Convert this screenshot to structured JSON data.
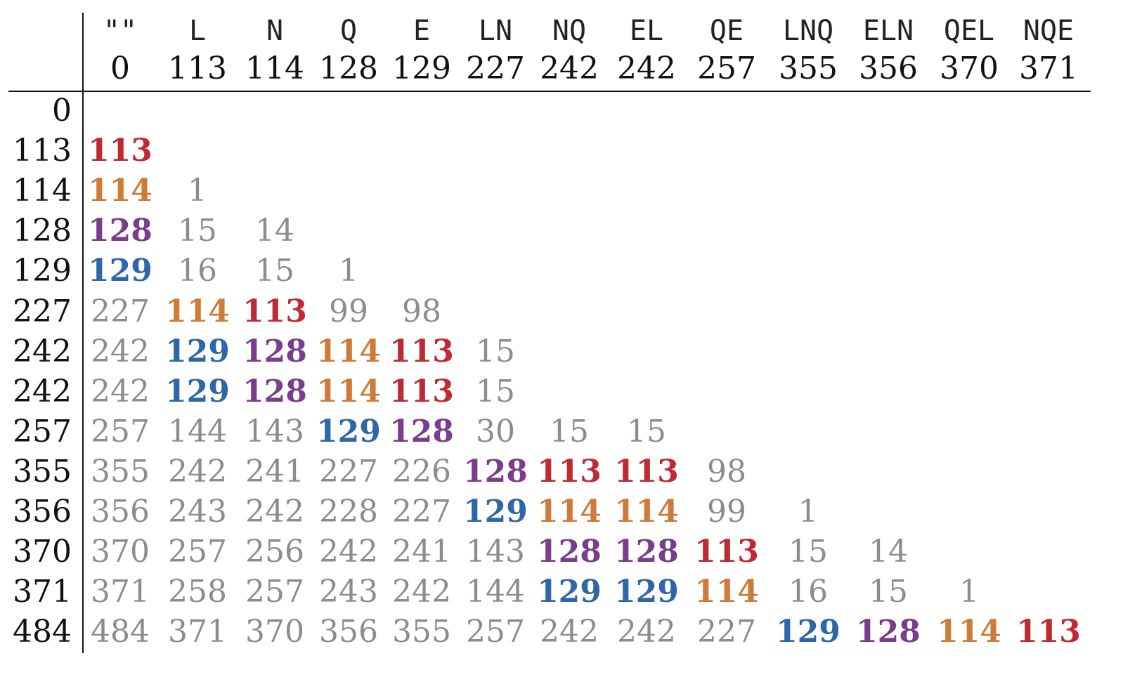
{
  "colors": {
    "red": "#bd2a33",
    "orange": "#d07a3a",
    "purple": "#7a3d8c",
    "blue": "#2d67a8",
    "gray": "#8c8c8c",
    "header": "#111111"
  },
  "header": {
    "codes": [
      "\"\"",
      "L",
      "N",
      "Q",
      "E",
      "LN",
      "NQ",
      "EL",
      "QE",
      "LNQ",
      "ELN",
      "QEL",
      "NQE"
    ],
    "values": [
      "0",
      "113",
      "114",
      "128",
      "129",
      "227",
      "242",
      "242",
      "257",
      "355",
      "356",
      "370",
      "371"
    ]
  },
  "rows": [
    {
      "label": "0",
      "cells": []
    },
    {
      "label": "113",
      "cells": [
        {
          "v": "113",
          "c": "red"
        }
      ]
    },
    {
      "label": "114",
      "cells": [
        {
          "v": "114",
          "c": "orange"
        },
        {
          "v": "1",
          "c": "gray"
        }
      ]
    },
    {
      "label": "128",
      "cells": [
        {
          "v": "128",
          "c": "purple"
        },
        {
          "v": "15",
          "c": "gray"
        },
        {
          "v": "14",
          "c": "gray"
        }
      ]
    },
    {
      "label": "129",
      "cells": [
        {
          "v": "129",
          "c": "blue"
        },
        {
          "v": "16",
          "c": "gray"
        },
        {
          "v": "15",
          "c": "gray"
        },
        {
          "v": "1",
          "c": "gray"
        }
      ]
    },
    {
      "label": "227",
      "cells": [
        {
          "v": "227",
          "c": "gray"
        },
        {
          "v": "114",
          "c": "orange"
        },
        {
          "v": "113",
          "c": "red"
        },
        {
          "v": "99",
          "c": "gray"
        },
        {
          "v": "98",
          "c": "gray"
        }
      ]
    },
    {
      "label": "242",
      "cells": [
        {
          "v": "242",
          "c": "gray"
        },
        {
          "v": "129",
          "c": "blue"
        },
        {
          "v": "128",
          "c": "purple"
        },
        {
          "v": "114",
          "c": "orange"
        },
        {
          "v": "113",
          "c": "red"
        },
        {
          "v": "15",
          "c": "gray"
        }
      ]
    },
    {
      "label": "242",
      "cells": [
        {
          "v": "242",
          "c": "gray"
        },
        {
          "v": "129",
          "c": "blue"
        },
        {
          "v": "128",
          "c": "purple"
        },
        {
          "v": "114",
          "c": "orange"
        },
        {
          "v": "113",
          "c": "red"
        },
        {
          "v": "15",
          "c": "gray"
        }
      ]
    },
    {
      "label": "257",
      "cells": [
        {
          "v": "257",
          "c": "gray"
        },
        {
          "v": "144",
          "c": "gray"
        },
        {
          "v": "143",
          "c": "gray"
        },
        {
          "v": "129",
          "c": "blue"
        },
        {
          "v": "128",
          "c": "purple"
        },
        {
          "v": "30",
          "c": "gray"
        },
        {
          "v": "15",
          "c": "gray"
        },
        {
          "v": "15",
          "c": "gray"
        }
      ]
    },
    {
      "label": "355",
      "cells": [
        {
          "v": "355",
          "c": "gray"
        },
        {
          "v": "242",
          "c": "gray"
        },
        {
          "v": "241",
          "c": "gray"
        },
        {
          "v": "227",
          "c": "gray"
        },
        {
          "v": "226",
          "c": "gray"
        },
        {
          "v": "128",
          "c": "purple"
        },
        {
          "v": "113",
          "c": "red"
        },
        {
          "v": "113",
          "c": "red"
        },
        {
          "v": "98",
          "c": "gray"
        }
      ]
    },
    {
      "label": "356",
      "cells": [
        {
          "v": "356",
          "c": "gray"
        },
        {
          "v": "243",
          "c": "gray"
        },
        {
          "v": "242",
          "c": "gray"
        },
        {
          "v": "228",
          "c": "gray"
        },
        {
          "v": "227",
          "c": "gray"
        },
        {
          "v": "129",
          "c": "blue"
        },
        {
          "v": "114",
          "c": "orange"
        },
        {
          "v": "114",
          "c": "orange"
        },
        {
          "v": "99",
          "c": "gray"
        },
        {
          "v": "1",
          "c": "gray"
        }
      ]
    },
    {
      "label": "370",
      "cells": [
        {
          "v": "370",
          "c": "gray"
        },
        {
          "v": "257",
          "c": "gray"
        },
        {
          "v": "256",
          "c": "gray"
        },
        {
          "v": "242",
          "c": "gray"
        },
        {
          "v": "241",
          "c": "gray"
        },
        {
          "v": "143",
          "c": "gray"
        },
        {
          "v": "128",
          "c": "purple"
        },
        {
          "v": "128",
          "c": "purple"
        },
        {
          "v": "113",
          "c": "red"
        },
        {
          "v": "15",
          "c": "gray"
        },
        {
          "v": "14",
          "c": "gray"
        }
      ]
    },
    {
      "label": "371",
      "cells": [
        {
          "v": "371",
          "c": "gray"
        },
        {
          "v": "258",
          "c": "gray"
        },
        {
          "v": "257",
          "c": "gray"
        },
        {
          "v": "243",
          "c": "gray"
        },
        {
          "v": "242",
          "c": "gray"
        },
        {
          "v": "144",
          "c": "gray"
        },
        {
          "v": "129",
          "c": "blue"
        },
        {
          "v": "129",
          "c": "blue"
        },
        {
          "v": "114",
          "c": "orange"
        },
        {
          "v": "16",
          "c": "gray"
        },
        {
          "v": "15",
          "c": "gray"
        },
        {
          "v": "1",
          "c": "gray"
        }
      ]
    },
    {
      "label": "484",
      "cells": [
        {
          "v": "484",
          "c": "gray"
        },
        {
          "v": "371",
          "c": "gray"
        },
        {
          "v": "370",
          "c": "gray"
        },
        {
          "v": "356",
          "c": "gray"
        },
        {
          "v": "355",
          "c": "gray"
        },
        {
          "v": "257",
          "c": "gray"
        },
        {
          "v": "242",
          "c": "gray"
        },
        {
          "v": "242",
          "c": "gray"
        },
        {
          "v": "227",
          "c": "gray"
        },
        {
          "v": "129",
          "c": "blue"
        },
        {
          "v": "128",
          "c": "purple"
        },
        {
          "v": "114",
          "c": "orange"
        },
        {
          "v": "113",
          "c": "red"
        }
      ]
    }
  ]
}
